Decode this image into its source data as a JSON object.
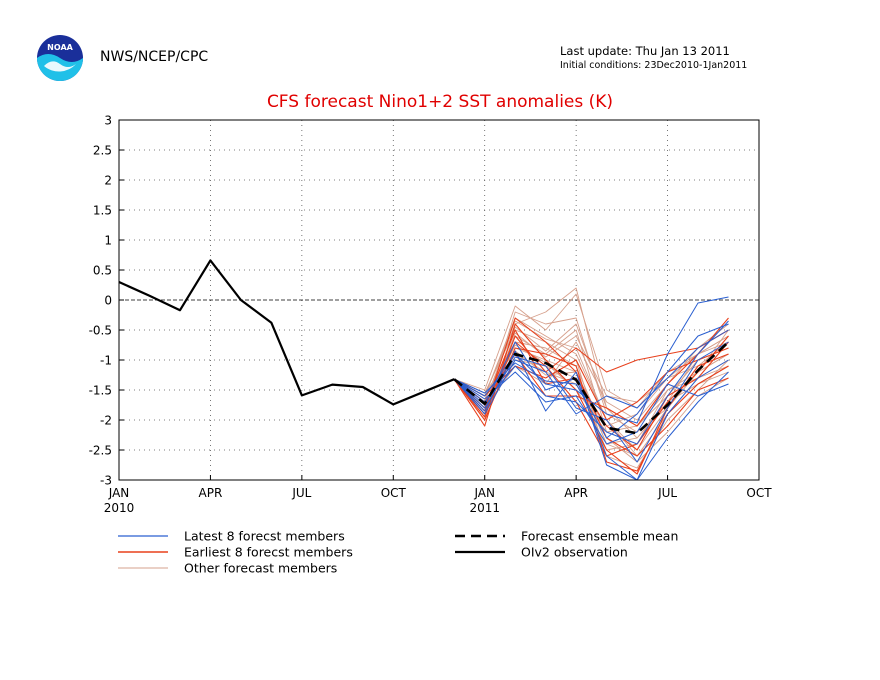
{
  "header": {
    "agency": "NWS/NCEP/CPC",
    "last_update": "Last update: Thu Jan 13 2011",
    "initial_conditions": "Initial conditions: 23Dec2010-1Jan2011",
    "logo_text": "NOAA"
  },
  "colors": {
    "latest": "#2a5fd0",
    "earliest": "#e8401c",
    "other": "#d6a08c",
    "mean": "#000000",
    "observation": "#000000",
    "title": "#e00000"
  },
  "chart_data": {
    "type": "line",
    "title": "CFS forecast Nino1+2 SST anomalies (K)",
    "xlabel": "",
    "ylabel": "",
    "xlim": [
      0,
      21
    ],
    "ylim": [
      -3,
      3
    ],
    "x_ticks": [
      {
        "x": 0,
        "label": "JAN",
        "year": "2010"
      },
      {
        "x": 3,
        "label": "APR",
        "year": ""
      },
      {
        "x": 6,
        "label": "JUL",
        "year": ""
      },
      {
        "x": 9,
        "label": "OCT",
        "year": ""
      },
      {
        "x": 12,
        "label": "JAN",
        "year": "2011"
      },
      {
        "x": 15,
        "label": "APR",
        "year": ""
      },
      {
        "x": 18,
        "label": "JUL",
        "year": ""
      },
      {
        "x": 21,
        "label": "OCT",
        "year": ""
      }
    ],
    "y_ticks": [
      {
        "v": 3,
        "label": "3"
      },
      {
        "v": 2.5,
        "label": "2.5"
      },
      {
        "v": 2,
        "label": "2"
      },
      {
        "v": 1.5,
        "label": "1.5"
      },
      {
        "v": 1,
        "label": "1"
      },
      {
        "v": 0.5,
        "label": "0.5"
      },
      {
        "v": 0,
        "label": "0"
      },
      {
        "v": -0.5,
        "label": "-0.5"
      },
      {
        "v": -1,
        "label": "-1"
      },
      {
        "v": -1.5,
        "label": "-1.5"
      },
      {
        "v": -2,
        "label": "-2"
      },
      {
        "v": -2.5,
        "label": "-2.5"
      },
      {
        "v": -3,
        "label": "-3"
      }
    ],
    "grid": "dotted",
    "legend": [
      {
        "label": "Latest 8 forecst members",
        "style": "latest"
      },
      {
        "label": "Earliest 8 forecst members",
        "style": "earliest"
      },
      {
        "label": "Other forecast members",
        "style": "other"
      },
      {
        "label": "Forecast ensemble mean",
        "style": "mean"
      },
      {
        "label": "OIv2 observation",
        "style": "observation"
      }
    ],
    "observation": {
      "x": [
        0,
        1,
        2,
        3,
        4,
        5,
        6,
        7,
        8,
        9,
        10,
        11
      ],
      "values": [
        0.3,
        0.07,
        -0.17,
        0.66,
        0.0,
        -0.38,
        -1.59,
        -1.41,
        -1.45,
        -1.74,
        -1.53,
        -1.32
      ]
    },
    "ensemble_mean": {
      "x": [
        11,
        12,
        13,
        14,
        15,
        16,
        17,
        18,
        19,
        20
      ],
      "values": [
        -1.32,
        -1.73,
        -0.9,
        -1.05,
        -1.33,
        -2.13,
        -2.22,
        -1.75,
        -1.17,
        -0.7
      ]
    },
    "member_x": [
      11,
      12,
      13,
      14,
      15,
      16,
      17,
      18,
      19,
      20
    ],
    "latest_members": [
      [
        -1.32,
        -1.6,
        -0.9,
        -1.4,
        -1.5,
        -1.9,
        -2.05,
        -0.9,
        -0.05,
        0.05
      ],
      [
        -1.32,
        -1.85,
        -0.85,
        -1.85,
        -1.2,
        -2.75,
        -3.0,
        -2.3,
        -1.7,
        -1.2
      ],
      [
        -1.32,
        -1.7,
        -1.1,
        -1.6,
        -1.7,
        -2.2,
        -2.4,
        -1.6,
        -0.9,
        -0.35
      ],
      [
        -1.32,
        -1.9,
        -1.0,
        -1.2,
        -1.9,
        -1.6,
        -1.8,
        -1.3,
        -0.8,
        -0.5
      ],
      [
        -1.32,
        -1.75,
        -0.7,
        -1.5,
        -1.3,
        -2.6,
        -3.0,
        -1.9,
        -1.3,
        -1.0
      ],
      [
        -1.32,
        -1.65,
        -1.2,
        -1.7,
        -1.6,
        -2.4,
        -2.2,
        -1.4,
        -1.6,
        -1.4
      ],
      [
        -1.32,
        -1.8,
        -0.95,
        -1.1,
        -1.8,
        -2.0,
        -2.7,
        -1.8,
        -1.0,
        -0.7
      ],
      [
        -1.32,
        -1.55,
        -1.05,
        -1.35,
        -1.4,
        -2.3,
        -1.9,
        -1.2,
        -0.6,
        -0.4
      ]
    ],
    "earliest_members": [
      [
        -1.32,
        -2.1,
        -0.4,
        -1.0,
        -1.5,
        -2.5,
        -2.9,
        -1.8,
        -1.1,
        -0.9
      ],
      [
        -1.32,
        -1.95,
        -0.6,
        -1.2,
        -0.8,
        -1.2,
        -1.0,
        -0.9,
        -0.8,
        -0.5
      ],
      [
        -1.32,
        -1.8,
        -0.5,
        -1.4,
        -1.3,
        -2.1,
        -2.5,
        -1.6,
        -1.3,
        -0.7
      ],
      [
        -1.32,
        -2.0,
        -0.8,
        -0.9,
        -1.1,
        -2.7,
        -2.85,
        -1.9,
        -1.4,
        -1.1
      ],
      [
        -1.32,
        -1.7,
        -0.9,
        -1.6,
        -1.6,
        -1.8,
        -2.1,
        -1.4,
        -0.9,
        -0.3
      ],
      [
        -1.32,
        -1.85,
        -0.3,
        -0.7,
        -1.2,
        -2.3,
        -2.6,
        -2.1,
        -1.5,
        -1.3
      ],
      [
        -1.32,
        -1.6,
        -1.1,
        -1.3,
        -1.0,
        -2.0,
        -1.7,
        -1.2,
        -1.0,
        -0.8
      ],
      [
        -1.32,
        -1.9,
        -0.7,
        -1.1,
        -1.7,
        -2.6,
        -2.4,
        -1.7,
        -1.2,
        -0.6
      ]
    ],
    "other_members": [
      [
        -1.32,
        -1.5,
        -0.1,
        -0.5,
        0.1,
        -1.5,
        -1.8,
        -1.2,
        -0.9,
        -0.6
      ],
      [
        -1.32,
        -1.7,
        -0.4,
        -0.2,
        0.2,
        -1.8,
        -2.1,
        -1.6,
        -1.0,
        -0.8
      ],
      [
        -1.32,
        -1.9,
        -0.6,
        -0.9,
        -0.5,
        -2.2,
        -2.4,
        -1.5,
        -1.2,
        -0.9
      ],
      [
        -1.32,
        -1.6,
        -0.3,
        -0.6,
        -0.9,
        -2.0,
        -2.6,
        -1.9,
        -1.3,
        -1.1
      ],
      [
        -1.32,
        -2.0,
        -0.8,
        -1.0,
        -1.2,
        -2.4,
        -2.3,
        -1.7,
        -1.4,
        -1.2
      ],
      [
        -1.32,
        -1.8,
        -1.1,
        -1.4,
        -0.7,
        -1.7,
        -2.0,
        -1.4,
        -0.8,
        -0.4
      ],
      [
        -1.32,
        -1.55,
        -0.5,
        -0.7,
        -1.0,
        -2.6,
        -2.8,
        -2.0,
        -1.5,
        -1.0
      ],
      [
        -1.32,
        -1.75,
        -0.9,
        -1.2,
        -1.4,
        -2.1,
        -1.9,
        -1.3,
        -1.1,
        -0.7
      ],
      [
        -1.32,
        -1.85,
        -0.2,
        -0.4,
        -0.3,
        -1.9,
        -2.2,
        -1.8,
        -1.2,
        -0.5
      ],
      [
        -1.32,
        -1.65,
        -0.7,
        -0.8,
        -1.1,
        -2.3,
        -2.7,
        -2.2,
        -1.6,
        -1.3
      ],
      [
        -1.32,
        -1.95,
        -0.55,
        -0.95,
        -0.6,
        -1.6,
        -1.7,
        -1.3,
        -0.9,
        -0.6
      ],
      [
        -1.32,
        -1.7,
        -1.0,
        -1.1,
        -1.3,
        -2.5,
        -2.4,
        -1.6,
        -1.0,
        -0.8
      ],
      [
        -1.32,
        -1.6,
        -0.35,
        -0.65,
        -0.8,
        -2.0,
        -2.5,
        -1.8,
        -1.2,
        -0.9
      ],
      [
        -1.32,
        -1.8,
        -0.75,
        -1.05,
        -1.5,
        -2.2,
        -2.1,
        -1.5,
        -1.3,
        -1.0
      ],
      [
        -1.32,
        -1.9,
        -0.45,
        -0.85,
        -0.4,
        -1.8,
        -2.3,
        -1.7,
        -0.9,
        -0.7
      ],
      [
        -1.32,
        -1.55,
        -0.85,
        -1.25,
        -1.2,
        -2.4,
        -2.6,
        -1.9,
        -1.4,
        -1.1
      ]
    ]
  }
}
